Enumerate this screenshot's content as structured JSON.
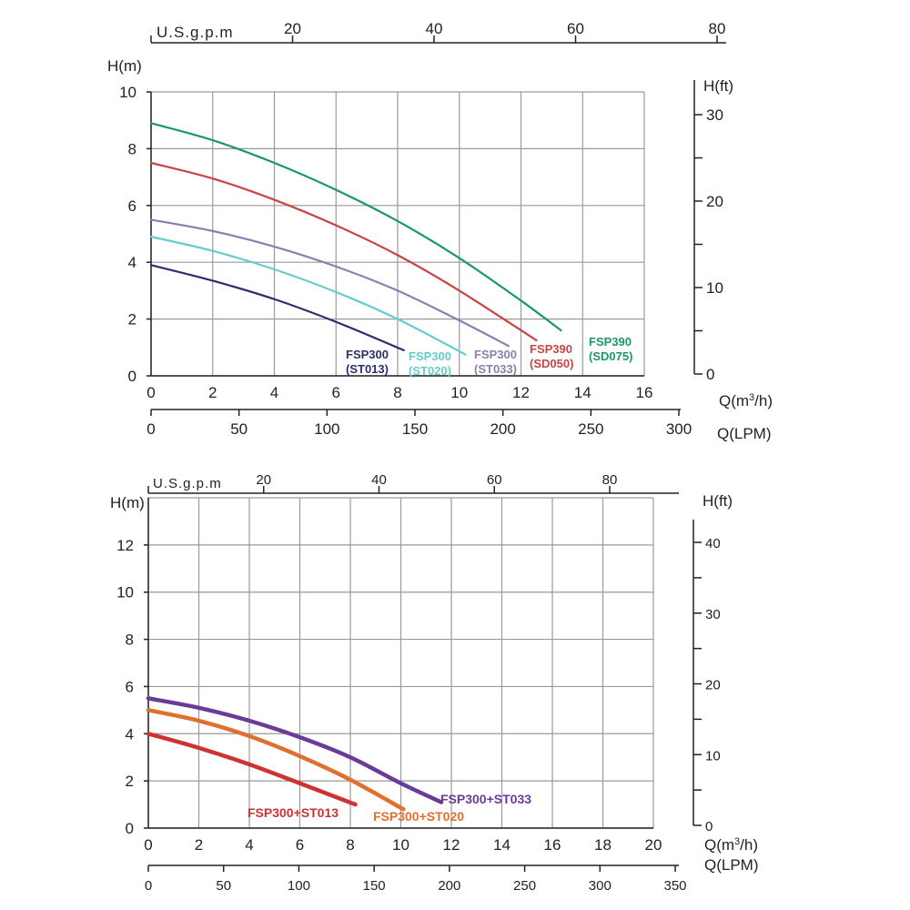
{
  "chart_data": [
    {
      "type": "line",
      "top_axis_label": "U.S.g.p.m",
      "top_ticks": [
        20,
        40,
        60,
        80
      ],
      "ylabel": "H(m)",
      "ylim": [
        0,
        10
      ],
      "yticks": [
        0,
        2,
        4,
        6,
        8,
        10
      ],
      "right_label": "H(ft)",
      "right_ticks": [
        0,
        10,
        20,
        30
      ],
      "xlabel": "Q(m³/h)",
      "xlim": [
        0,
        16
      ],
      "xticks": [
        0,
        2,
        4,
        6,
        8,
        10,
        12,
        14,
        16
      ],
      "bottom_label": "Q(LPM)",
      "bottom_ticks": [
        0,
        50,
        100,
        150,
        200,
        250,
        300
      ],
      "grid": true,
      "series": [
        {
          "name": "FSP300 (ST013)",
          "label_lines": [
            "FSP300",
            "(ST013)"
          ],
          "color": "#2e2e6e",
          "x": [
            0,
            2,
            4,
            6,
            8.2
          ],
          "y": [
            3.9,
            3.35,
            2.7,
            1.9,
            0.9
          ]
        },
        {
          "name": "FSP300 (ST020)",
          "label_lines": [
            "FSP300",
            "(ST020)"
          ],
          "color": "#66cccc",
          "x": [
            0,
            2,
            4,
            6,
            8,
            10.2
          ],
          "y": [
            4.9,
            4.4,
            3.75,
            2.95,
            2.0,
            0.75
          ]
        },
        {
          "name": "FSP300 (ST033)",
          "label_lines": [
            "FSP300",
            "(ST033)"
          ],
          "color": "#8a7fb3",
          "x": [
            0,
            2,
            4,
            6,
            8,
            10,
            11.6
          ],
          "y": [
            5.5,
            5.1,
            4.55,
            3.85,
            3.0,
            1.95,
            1.05
          ]
        },
        {
          "name": "FSP390 (SD050)",
          "label_lines": [
            "FSP390",
            "(SD050)"
          ],
          "color": "#c94444",
          "x": [
            0,
            2,
            4,
            6,
            8,
            10,
            12.5
          ],
          "y": [
            7.5,
            6.95,
            6.2,
            5.3,
            4.25,
            3.0,
            1.25
          ]
        },
        {
          "name": "FSP390 (SD075)",
          "label_lines": [
            "FSP390",
            "(SD075)"
          ],
          "color": "#1a9966",
          "x": [
            0,
            2,
            4,
            6,
            8,
            10,
            12,
            13.3
          ],
          "y": [
            8.9,
            8.3,
            7.5,
            6.55,
            5.45,
            4.15,
            2.65,
            1.6
          ]
        }
      ]
    },
    {
      "type": "line",
      "top_axis_label": "U.S.g.p.m",
      "top_ticks": [
        20,
        40,
        60,
        80
      ],
      "ylabel": "H(m)",
      "ylim": [
        0,
        14
      ],
      "yticks": [
        0,
        2,
        4,
        6,
        8,
        10,
        12
      ],
      "right_label": "H(ft)",
      "right_ticks": [
        0,
        10,
        20,
        30,
        40
      ],
      "xlabel": "Q(m³/h)",
      "xlim": [
        0,
        20
      ],
      "xticks": [
        0,
        2,
        4,
        6,
        8,
        10,
        12,
        14,
        16,
        18,
        20
      ],
      "bottom_label": "Q(LPM)",
      "bottom_ticks": [
        0,
        50,
        100,
        150,
        200,
        250,
        300,
        350
      ],
      "grid": true,
      "series": [
        {
          "name": "FSP300+ST013",
          "label_lines": [
            "FSP300+ST013"
          ],
          "color": "#cc3333",
          "x": [
            0,
            2,
            4,
            6,
            8.2
          ],
          "y": [
            4.0,
            3.4,
            2.7,
            1.9,
            1.0
          ]
        },
        {
          "name": "FSP300+ST020",
          "label_lines": [
            "FSP300+ST020"
          ],
          "color": "#e07030",
          "x": [
            0,
            2,
            4,
            6,
            8,
            10.1
          ],
          "y": [
            5.0,
            4.55,
            3.9,
            3.05,
            2.05,
            0.8
          ]
        },
        {
          "name": "FSP300+ST033",
          "label_lines": [
            "FSP300+ST033"
          ],
          "color": "#6a3c99",
          "x": [
            0,
            2,
            4,
            6,
            8,
            10,
            11.6
          ],
          "y": [
            5.5,
            5.1,
            4.55,
            3.85,
            3.0,
            1.9,
            1.1
          ]
        }
      ]
    }
  ]
}
